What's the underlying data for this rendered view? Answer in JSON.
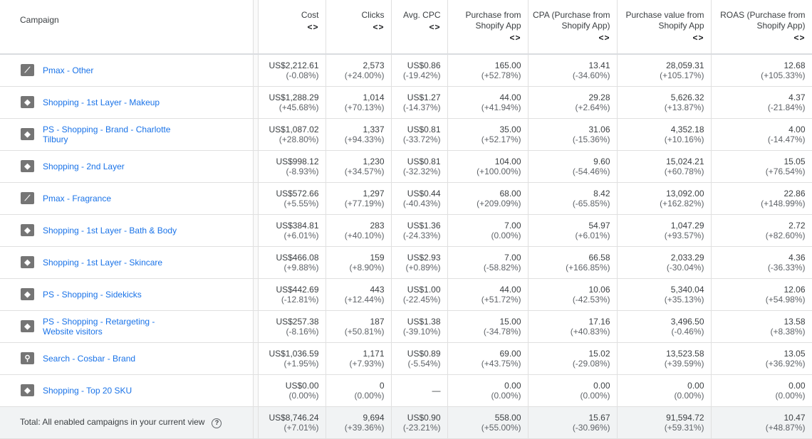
{
  "headers": [
    "Campaign",
    "Cost",
    "Clicks",
    "Avg. CPC",
    "Purchase from Shopify App",
    "CPA (Purchase from Shopify App)",
    "Purchase value from Shopify App",
    "ROAS (Purchase from Shopify App)"
  ],
  "sort_icon": "<>",
  "rows": [
    {
      "icon": "pmax-icon",
      "name": "Pmax - Other",
      "cells": [
        [
          "US$2,212.61",
          "(-0.08%)"
        ],
        [
          "2,573",
          "(+24.00%)"
        ],
        [
          "US$0.86",
          "(-19.42%)"
        ],
        [
          "165.00",
          "(+52.78%)"
        ],
        [
          "13.41",
          "(-34.60%)"
        ],
        [
          "28,059.31",
          "(+105.17%)"
        ],
        [
          "12.68",
          "(+105.33%)"
        ]
      ]
    },
    {
      "icon": "shopping-tag-icon",
      "name": "Shopping - 1st Layer - Makeup",
      "cells": [
        [
          "US$1,288.29",
          "(+45.68%)"
        ],
        [
          "1,014",
          "(+70.13%)"
        ],
        [
          "US$1.27",
          "(-14.37%)"
        ],
        [
          "44.00",
          "(+41.94%)"
        ],
        [
          "29.28",
          "(+2.64%)"
        ],
        [
          "5,626.32",
          "(+13.87%)"
        ],
        [
          "4.37",
          "(-21.84%)"
        ]
      ]
    },
    {
      "icon": "shopping-tag-icon",
      "name": "PS - Shopping - Brand - Charlotte Tilbury",
      "cells": [
        [
          "US$1,087.02",
          "(+28.80%)"
        ],
        [
          "1,337",
          "(+94.33%)"
        ],
        [
          "US$0.81",
          "(-33.72%)"
        ],
        [
          "35.00",
          "(+52.17%)"
        ],
        [
          "31.06",
          "(-15.36%)"
        ],
        [
          "4,352.18",
          "(+10.16%)"
        ],
        [
          "4.00",
          "(-14.47%)"
        ]
      ]
    },
    {
      "icon": "shopping-tag-icon",
      "name": "Shopping - 2nd Layer",
      "cells": [
        [
          "US$998.12",
          "(-8.93%)"
        ],
        [
          "1,230",
          "(+34.57%)"
        ],
        [
          "US$0.81",
          "(-32.32%)"
        ],
        [
          "104.00",
          "(+100.00%)"
        ],
        [
          "9.60",
          "(-54.46%)"
        ],
        [
          "15,024.21",
          "(+60.78%)"
        ],
        [
          "15.05",
          "(+76.54%)"
        ]
      ]
    },
    {
      "icon": "pmax-icon",
      "name": "Pmax - Fragrance",
      "cells": [
        [
          "US$572.66",
          "(+5.55%)"
        ],
        [
          "1,297",
          "(+77.19%)"
        ],
        [
          "US$0.44",
          "(-40.43%)"
        ],
        [
          "68.00",
          "(+209.09%)"
        ],
        [
          "8.42",
          "(-65.85%)"
        ],
        [
          "13,092.00",
          "(+162.82%)"
        ],
        [
          "22.86",
          "(+148.99%)"
        ]
      ]
    },
    {
      "icon": "shopping-tag-icon",
      "name": "Shopping - 1st Layer - Bath & Body",
      "cells": [
        [
          "US$384.81",
          "(+6.01%)"
        ],
        [
          "283",
          "(+40.10%)"
        ],
        [
          "US$1.36",
          "(-24.33%)"
        ],
        [
          "7.00",
          "(0.00%)"
        ],
        [
          "54.97",
          "(+6.01%)"
        ],
        [
          "1,047.29",
          "(+93.57%)"
        ],
        [
          "2.72",
          "(+82.60%)"
        ]
      ]
    },
    {
      "icon": "shopping-tag-icon",
      "name": "Shopping - 1st Layer - Skincare",
      "cells": [
        [
          "US$466.08",
          "(+9.88%)"
        ],
        [
          "159",
          "(+8.90%)"
        ],
        [
          "US$2.93",
          "(+0.89%)"
        ],
        [
          "7.00",
          "(-58.82%)"
        ],
        [
          "66.58",
          "(+166.85%)"
        ],
        [
          "2,033.29",
          "(-30.04%)"
        ],
        [
          "4.36",
          "(-36.33%)"
        ]
      ]
    },
    {
      "icon": "shopping-tag-icon",
      "name": "PS - Shopping -  Sidekicks",
      "cells": [
        [
          "US$442.69",
          "(-12.81%)"
        ],
        [
          "443",
          "(+12.44%)"
        ],
        [
          "US$1.00",
          "(-22.45%)"
        ],
        [
          "44.00",
          "(+51.72%)"
        ],
        [
          "10.06",
          "(-42.53%)"
        ],
        [
          "5,340.04",
          "(+35.13%)"
        ],
        [
          "12.06",
          "(+54.98%)"
        ]
      ]
    },
    {
      "icon": "shopping-tag-icon",
      "name": "PS - Shopping - Retargeting - Website visitors",
      "cells": [
        [
          "US$257.38",
          "(-8.16%)"
        ],
        [
          "187",
          "(+50.81%)"
        ],
        [
          "US$1.38",
          "(-39.10%)"
        ],
        [
          "15.00",
          "(-34.78%)"
        ],
        [
          "17.16",
          "(+40.83%)"
        ],
        [
          "3,496.50",
          "(-0.46%)"
        ],
        [
          "13.58",
          "(+8.38%)"
        ]
      ]
    },
    {
      "icon": "search-icon",
      "name": "Search - Cosbar - Brand",
      "cells": [
        [
          "US$1,036.59",
          "(+1.95%)"
        ],
        [
          "1,171",
          "(+7.93%)"
        ],
        [
          "US$0.89",
          "(-5.54%)"
        ],
        [
          "69.00",
          "(+43.75%)"
        ],
        [
          "15.02",
          "(-29.08%)"
        ],
        [
          "13,523.58",
          "(+39.59%)"
        ],
        [
          "13.05",
          "(+36.92%)"
        ]
      ]
    },
    {
      "icon": "shopping-tag-icon",
      "name": "Shopping - Top 20 SKU",
      "cells": [
        [
          "US$0.00",
          "(0.00%)"
        ],
        [
          "0",
          "(0.00%)"
        ],
        [
          "—",
          ""
        ],
        [
          "0.00",
          "(0.00%)"
        ],
        [
          "0.00",
          "(0.00%)"
        ],
        [
          "0.00",
          "(0.00%)"
        ],
        [
          "0.00",
          "(0.00%)"
        ]
      ]
    }
  ],
  "total": {
    "label": "Total: All enabled campaigns in your current view",
    "cells": [
      [
        "US$8,746.24",
        "(+7.01%)"
      ],
      [
        "9,694",
        "(+39.36%)"
      ],
      [
        "US$0.90",
        "(-23.21%)"
      ],
      [
        "558.00",
        "(+55.00%)"
      ],
      [
        "15.67",
        "(-30.96%)"
      ],
      [
        "91,594.72",
        "(+59.31%)"
      ],
      [
        "10.47",
        "(+48.87%)"
      ]
    ]
  }
}
